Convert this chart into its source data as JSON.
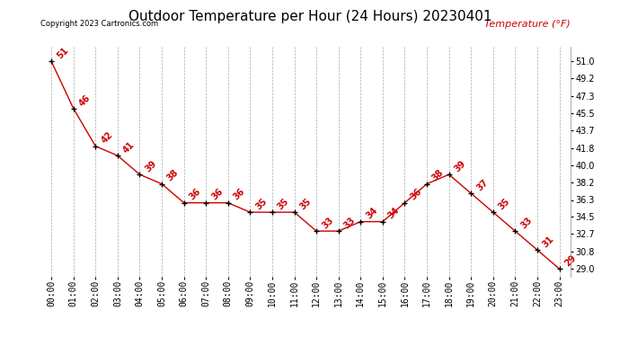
{
  "title": "Outdoor Temperature per Hour (24 Hours) 20230401",
  "copyright": "Copyright 2023 Cartronics.com",
  "legend_label": "Temperature (°F)",
  "hours": [
    "00:00",
    "01:00",
    "02:00",
    "03:00",
    "04:00",
    "05:00",
    "06:00",
    "07:00",
    "08:00",
    "09:00",
    "10:00",
    "11:00",
    "12:00",
    "13:00",
    "14:00",
    "15:00",
    "16:00",
    "17:00",
    "18:00",
    "19:00",
    "20:00",
    "21:00",
    "22:00",
    "23:00"
  ],
  "temperatures": [
    51,
    46,
    42,
    41,
    39,
    38,
    36,
    36,
    36,
    35,
    35,
    35,
    33,
    33,
    34,
    34,
    36,
    38,
    39,
    37,
    35,
    33,
    31,
    29
  ],
  "annotations": [
    "51",
    "46",
    "42",
    "41",
    "39",
    "38",
    "36",
    "36",
    "36",
    "35",
    "35",
    "35",
    "33",
    "33",
    "34",
    "34",
    "36",
    "38",
    "39",
    "37",
    "35",
    "33",
    "31",
    "29"
  ],
  "line_color": "#cc0000",
  "marker_color": "#000000",
  "background_color": "#ffffff",
  "grid_color": "#aaaaaa",
  "yticks": [
    29.0,
    30.8,
    32.7,
    34.5,
    36.3,
    38.2,
    40.0,
    41.8,
    43.7,
    45.5,
    47.3,
    49.2,
    51.0
  ],
  "ylim": [
    28.2,
    52.5
  ],
  "title_fontsize": 11,
  "tick_fontsize": 7,
  "annotation_fontsize": 7,
  "copyright_fontsize": 6,
  "legend_fontsize": 8
}
